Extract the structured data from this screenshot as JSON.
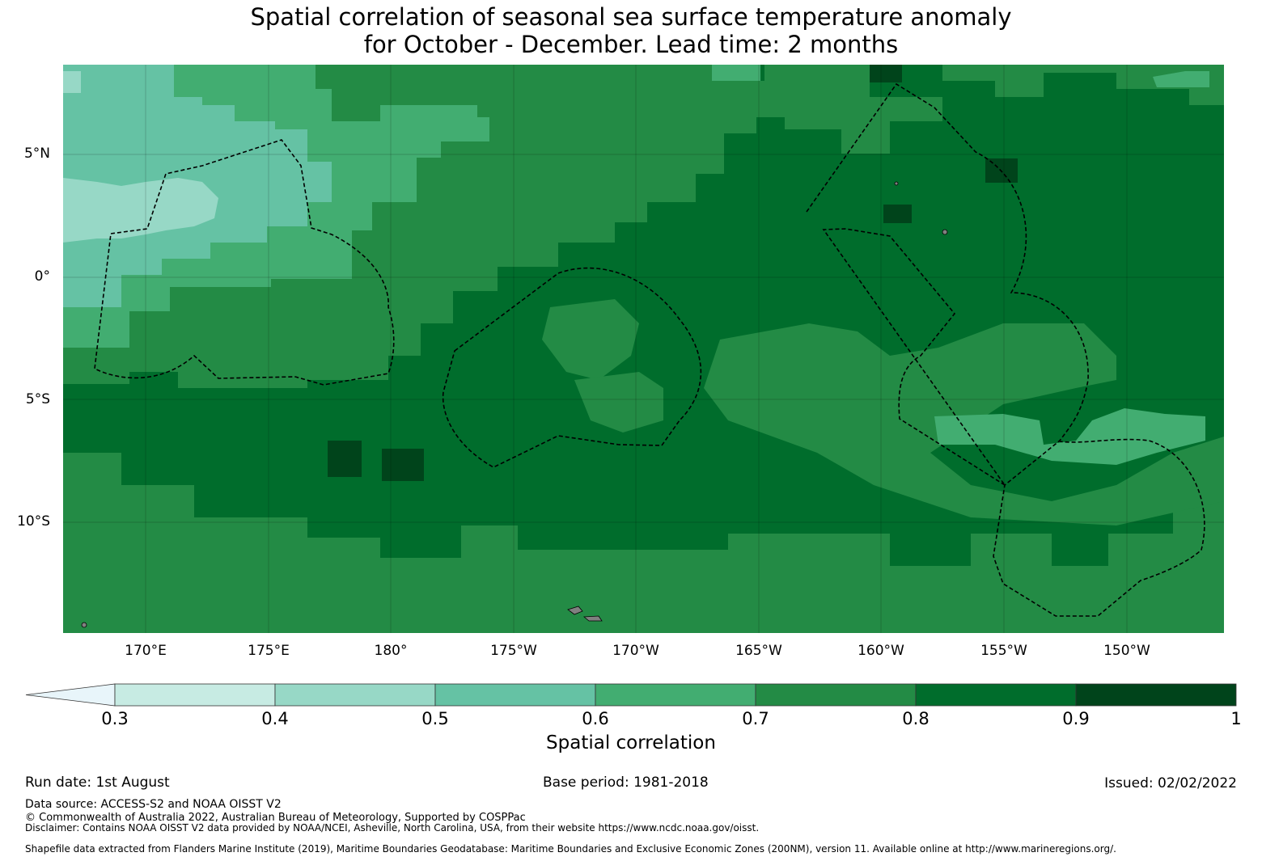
{
  "title": {
    "line1": "Spatial correlation of seasonal sea surface temperature anomaly",
    "line2": "for October - December. Lead time: 2 months"
  },
  "map": {
    "lat_ticks": [
      "5°N",
      "0°",
      "5°S",
      "10°S"
    ],
    "lon_ticks": [
      "170°E",
      "175°E",
      "180°",
      "175°W",
      "170°W",
      "165°W",
      "160°W",
      "155°W",
      "150°W"
    ],
    "gridlines": true,
    "boundaries": "dashed black EEZ outlines",
    "land_color": "#808080"
  },
  "colorbar": {
    "label": "Spatial correlation",
    "ticks": [
      "0.3",
      "0.4",
      "0.5",
      "0.6",
      "0.7",
      "0.8",
      "0.9",
      "1"
    ],
    "under_color": "#e8f5fa",
    "colors": [
      "#c7ebe3",
      "#97d8c6",
      "#65c2a4",
      "#42ad71",
      "#238b45",
      "#006d2c",
      "#00441b"
    ]
  },
  "footer": {
    "run_date": "Run date: 1st August",
    "base_period": "Base period: 1981-2018",
    "issued": "Issued: 02/02/2022",
    "data_source": "Data source: ACCESS-S2 and NOAA OISST V2",
    "copyright": "© Commonwealth of Australia 2022, Australian Bureau of Meteorology, Supported by COSPPac",
    "disclaimer": "Disclaimer: Contains NOAA OISST V2 data provided by NOAA/NCEI, Asheville, North Carolina, USA, from their website https://www.ncdc.noaa.gov/oisst.",
    "shapefile": "Shapefile data extracted from Flanders Marine Institute (2019), Maritime Boundaries Geodatabase: Maritime Boundaries and Exclusive Economic Zones (200NM), version 11. Available online at http://www.marineregions.org/."
  }
}
